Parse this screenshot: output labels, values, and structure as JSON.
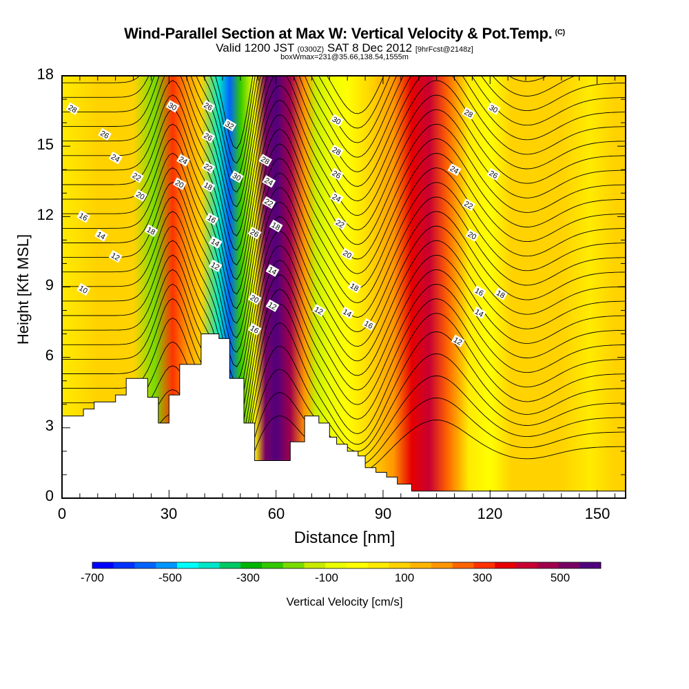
{
  "header": {
    "title": "Wind-Parallel Section at Max W: Vertical Velocity & Pot.Temp.",
    "copyright_mark": "(C)",
    "valid_prefix": "Valid 1200 JST",
    "utc_time": "(0300Z)",
    "valid_date": "SAT 8 Dec 2012",
    "forecast_info": "[9hrFcst@2148z]",
    "box_info": "boxWmax=231@35.66,138.54,1555m"
  },
  "chart_data": {
    "type": "heatmap",
    "xlabel": "Distance [nm]",
    "ylabel": "Height [Kft MSL]",
    "xlim": [
      0,
      158
    ],
    "ylim": [
      0,
      18
    ],
    "xticks": [
      0,
      30,
      60,
      90,
      120,
      150
    ],
    "yticks": [
      0,
      3,
      6,
      9,
      12,
      15,
      18
    ],
    "colorbar": {
      "title": "Vertical Velocity [cm/s]",
      "labels": [
        -700,
        -500,
        -300,
        -100,
        100,
        300,
        500
      ],
      "colors": [
        "#0000ff",
        "#0032ff",
        "#0064ff",
        "#0096ff",
        "#00ffff",
        "#00e6c8",
        "#00c864",
        "#00b400",
        "#32c800",
        "#78dc00",
        "#c8eb00",
        "#ebff00",
        "#ffff00",
        "#ffeb00",
        "#ffd200",
        "#ffb400",
        "#ff9600",
        "#ff6400",
        "#ff3200",
        "#e60000",
        "#c80032",
        "#a0004b",
        "#780064",
        "#50007d"
      ]
    },
    "velocity_bands": [
      {
        "x": 0,
        "w": -10
      },
      {
        "x": 10,
        "w": 40
      },
      {
        "x": 20,
        "w": 10
      },
      {
        "x": 26,
        "w": -240
      },
      {
        "x": 31,
        "w": 230
      },
      {
        "x": 35,
        "w": 120
      },
      {
        "x": 39,
        "w": 10
      },
      {
        "x": 44,
        "w": -420
      },
      {
        "x": 47,
        "w": -560
      },
      {
        "x": 50,
        "w": -300
      },
      {
        "x": 54,
        "w": -80
      },
      {
        "x": 57,
        "w": 420
      },
      {
        "x": 60,
        "w": 640
      },
      {
        "x": 64,
        "w": 380
      },
      {
        "x": 68,
        "w": 120
      },
      {
        "x": 71,
        "w": -180
      },
      {
        "x": 75,
        "w": -120
      },
      {
        "x": 80,
        "w": -60
      },
      {
        "x": 87,
        "w": 40
      },
      {
        "x": 93,
        "w": 140
      },
      {
        "x": 98,
        "w": 280
      },
      {
        "x": 103,
        "w": 320
      },
      {
        "x": 108,
        "w": 180
      },
      {
        "x": 114,
        "w": -20
      },
      {
        "x": 120,
        "w": -70
      },
      {
        "x": 126,
        "w": 40
      },
      {
        "x": 133,
        "w": 10
      },
      {
        "x": 140,
        "w": 40
      },
      {
        "x": 148,
        "w": -40
      },
      {
        "x": 155,
        "w": 10
      },
      {
        "x": 158,
        "w": 10
      }
    ],
    "terrain": [
      [
        0,
        3.5
      ],
      [
        1,
        3.5
      ],
      [
        6,
        3.5
      ],
      [
        6,
        3.8
      ],
      [
        9,
        3.8
      ],
      [
        9,
        4.1
      ],
      [
        15,
        4.1
      ],
      [
        15,
        4.4
      ],
      [
        18,
        4.4
      ],
      [
        18,
        5.1
      ],
      [
        24,
        5.1
      ],
      [
        24,
        4.3
      ],
      [
        27,
        4.3
      ],
      [
        27,
        3.2
      ],
      [
        30,
        3.2
      ],
      [
        30,
        4.4
      ],
      [
        33,
        4.4
      ],
      [
        33,
        5.7
      ],
      [
        39,
        5.7
      ],
      [
        39,
        7.0
      ],
      [
        44,
        7.0
      ],
      [
        44,
        6.8
      ],
      [
        47,
        6.8
      ],
      [
        47,
        5.1
      ],
      [
        51,
        5.1
      ],
      [
        51,
        3.2
      ],
      [
        54,
        3.2
      ],
      [
        54,
        1.6
      ],
      [
        61,
        1.6
      ],
      [
        61,
        1.6
      ],
      [
        64,
        1.6
      ],
      [
        64,
        2.4
      ],
      [
        68,
        2.4
      ],
      [
        68,
        3.5
      ],
      [
        72,
        3.5
      ],
      [
        72,
        3.2
      ],
      [
        75,
        3.2
      ],
      [
        75,
        2.6
      ],
      [
        77,
        2.6
      ],
      [
        77,
        2.3
      ],
      [
        80,
        2.3
      ],
      [
        80,
        2.0
      ],
      [
        83,
        2.0
      ],
      [
        83,
        1.8
      ],
      [
        85,
        1.8
      ],
      [
        85,
        1.3
      ],
      [
        88,
        1.3
      ],
      [
        88,
        1.1
      ],
      [
        91,
        1.1
      ],
      [
        91,
        0.9
      ],
      [
        94,
        0.9
      ],
      [
        94,
        0.6
      ],
      [
        98,
        0.6
      ],
      [
        98,
        0.3
      ],
      [
        104,
        0.3
      ],
      [
        158,
        0.3
      ]
    ],
    "contour_labels": [
      {
        "v": "28",
        "x": 3,
        "y": 16.6
      },
      {
        "v": "26",
        "x": 12,
        "y": 15.5
      },
      {
        "v": "24",
        "x": 15,
        "y": 14.5
      },
      {
        "v": "22",
        "x": 21,
        "y": 13.7
      },
      {
        "v": "20",
        "x": 22,
        "y": 12.9
      },
      {
        "v": "16",
        "x": 6,
        "y": 12.0
      },
      {
        "v": "14",
        "x": 11,
        "y": 11.2
      },
      {
        "v": "12",
        "x": 15,
        "y": 10.3
      },
      {
        "v": "10",
        "x": 6,
        "y": 8.9
      },
      {
        "v": "18",
        "x": 25,
        "y": 11.4
      },
      {
        "v": "30",
        "x": 31,
        "y": 16.7
      },
      {
        "v": "24",
        "x": 34,
        "y": 14.4
      },
      {
        "v": "20",
        "x": 33,
        "y": 13.4
      },
      {
        "v": "26",
        "x": 41,
        "y": 16.7
      },
      {
        "v": "26",
        "x": 41,
        "y": 15.4
      },
      {
        "v": "22",
        "x": 41,
        "y": 14.1
      },
      {
        "v": "18",
        "x": 41,
        "y": 13.3
      },
      {
        "v": "16",
        "x": 42,
        "y": 11.9
      },
      {
        "v": "14",
        "x": 43,
        "y": 10.9
      },
      {
        "v": "12",
        "x": 43,
        "y": 9.9
      },
      {
        "v": "32",
        "x": 47,
        "y": 15.9
      },
      {
        "v": "30",
        "x": 49,
        "y": 13.7
      },
      {
        "v": "28",
        "x": 57,
        "y": 14.4
      },
      {
        "v": "24",
        "x": 58,
        "y": 13.5
      },
      {
        "v": "22",
        "x": 58,
        "y": 12.6
      },
      {
        "v": "18",
        "x": 60,
        "y": 11.6
      },
      {
        "v": "26",
        "x": 54,
        "y": 11.3
      },
      {
        "v": "14",
        "x": 59,
        "y": 9.7
      },
      {
        "v": "20",
        "x": 54,
        "y": 8.5
      },
      {
        "v": "12",
        "x": 59,
        "y": 8.2
      },
      {
        "v": "16",
        "x": 54,
        "y": 7.2
      },
      {
        "v": "30",
        "x": 77,
        "y": 16.1
      },
      {
        "v": "28",
        "x": 77,
        "y": 14.8
      },
      {
        "v": "26",
        "x": 77,
        "y": 13.8
      },
      {
        "v": "24",
        "x": 77,
        "y": 12.8
      },
      {
        "v": "22",
        "x": 78,
        "y": 11.7
      },
      {
        "v": "20",
        "x": 80,
        "y": 10.4
      },
      {
        "v": "18",
        "x": 82,
        "y": 9.0
      },
      {
        "v": "12",
        "x": 72,
        "y": 8.0
      },
      {
        "v": "14",
        "x": 80,
        "y": 7.9
      },
      {
        "v": "16",
        "x": 86,
        "y": 7.4
      },
      {
        "v": "30",
        "x": 121,
        "y": 16.6
      },
      {
        "v": "28",
        "x": 114,
        "y": 16.4
      },
      {
        "v": "24",
        "x": 110,
        "y": 14.0
      },
      {
        "v": "26",
        "x": 121,
        "y": 13.8
      },
      {
        "v": "22",
        "x": 114,
        "y": 12.5
      },
      {
        "v": "20",
        "x": 115,
        "y": 11.2
      },
      {
        "v": "16",
        "x": 117,
        "y": 8.8
      },
      {
        "v": "18",
        "x": 123,
        "y": 8.7
      },
      {
        "v": "14",
        "x": 117,
        "y": 7.9
      },
      {
        "v": "12",
        "x": 111,
        "y": 6.7
      }
    ]
  }
}
